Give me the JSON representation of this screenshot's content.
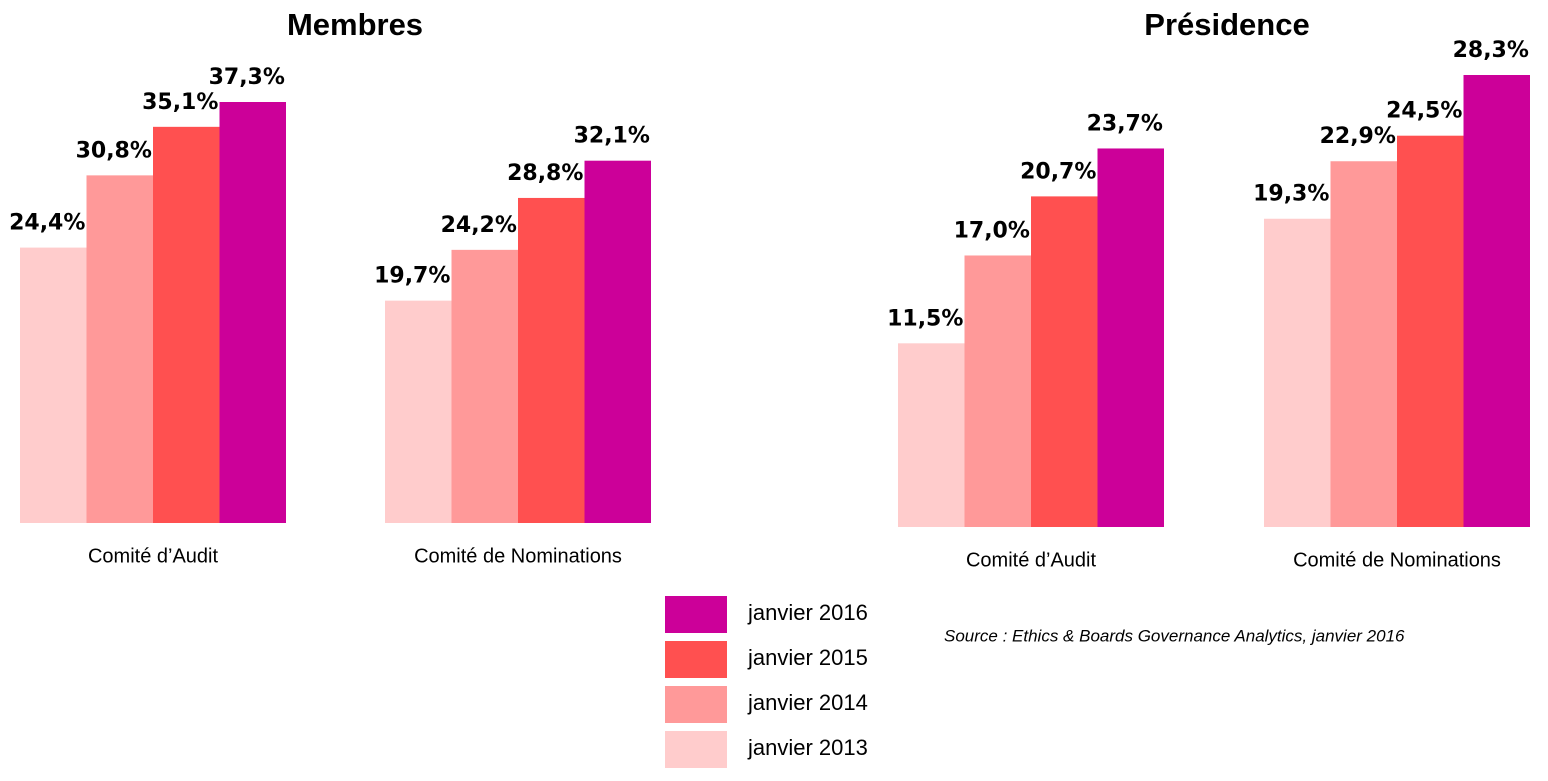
{
  "chart_data": [
    {
      "type": "bar",
      "title": "Membres",
      "categories": [
        "Comité d’Audit",
        "Comité de Nominations"
      ],
      "series": [
        {
          "name": "janvier 2013",
          "color": "#ffcccc",
          "values": [
            24.4,
            19.7
          ],
          "value_labels": [
            "24,4%",
            "19,7%"
          ]
        },
        {
          "name": "janvier 2014",
          "color": "#ff9999",
          "values": [
            30.8,
            24.2
          ],
          "value_labels": [
            "30,8%",
            "24,2%"
          ]
        },
        {
          "name": "janvier 2015",
          "color": "#ff5050",
          "values": [
            35.1,
            28.8
          ],
          "value_labels": [
            "35,1%",
            "28,8%"
          ]
        },
        {
          "name": "janvier 2016",
          "color": "#cc0099",
          "values": [
            37.3,
            32.1
          ],
          "value_labels": [
            "37,3%",
            "32,1%"
          ]
        }
      ]
    },
    {
      "type": "bar",
      "title": "Présidence",
      "categories": [
        "Comité d’Audit",
        "Comité de Nominations"
      ],
      "series": [
        {
          "color": "#ffcccc",
          "values": [
            11.5,
            19.3
          ],
          "value_labels": [
            "11,5%",
            "19,3%"
          ]
        },
        {
          "color": "#ff9999",
          "values": [
            17.0,
            22.9
          ],
          "value_labels": [
            "17,0%",
            "22,9%"
          ]
        },
        {
          "color": "#ff5050",
          "values": [
            20.7,
            24.5
          ],
          "value_labels": [
            "20,7%",
            "24,5%"
          ]
        },
        {
          "color": "#cc0099",
          "values": [
            23.7,
            28.3
          ],
          "value_labels": [
            "23,7%",
            "28,3%"
          ]
        }
      ]
    }
  ],
  "source": "Source : Ethics & Boards Governance Analytics, janvier 2016"
}
